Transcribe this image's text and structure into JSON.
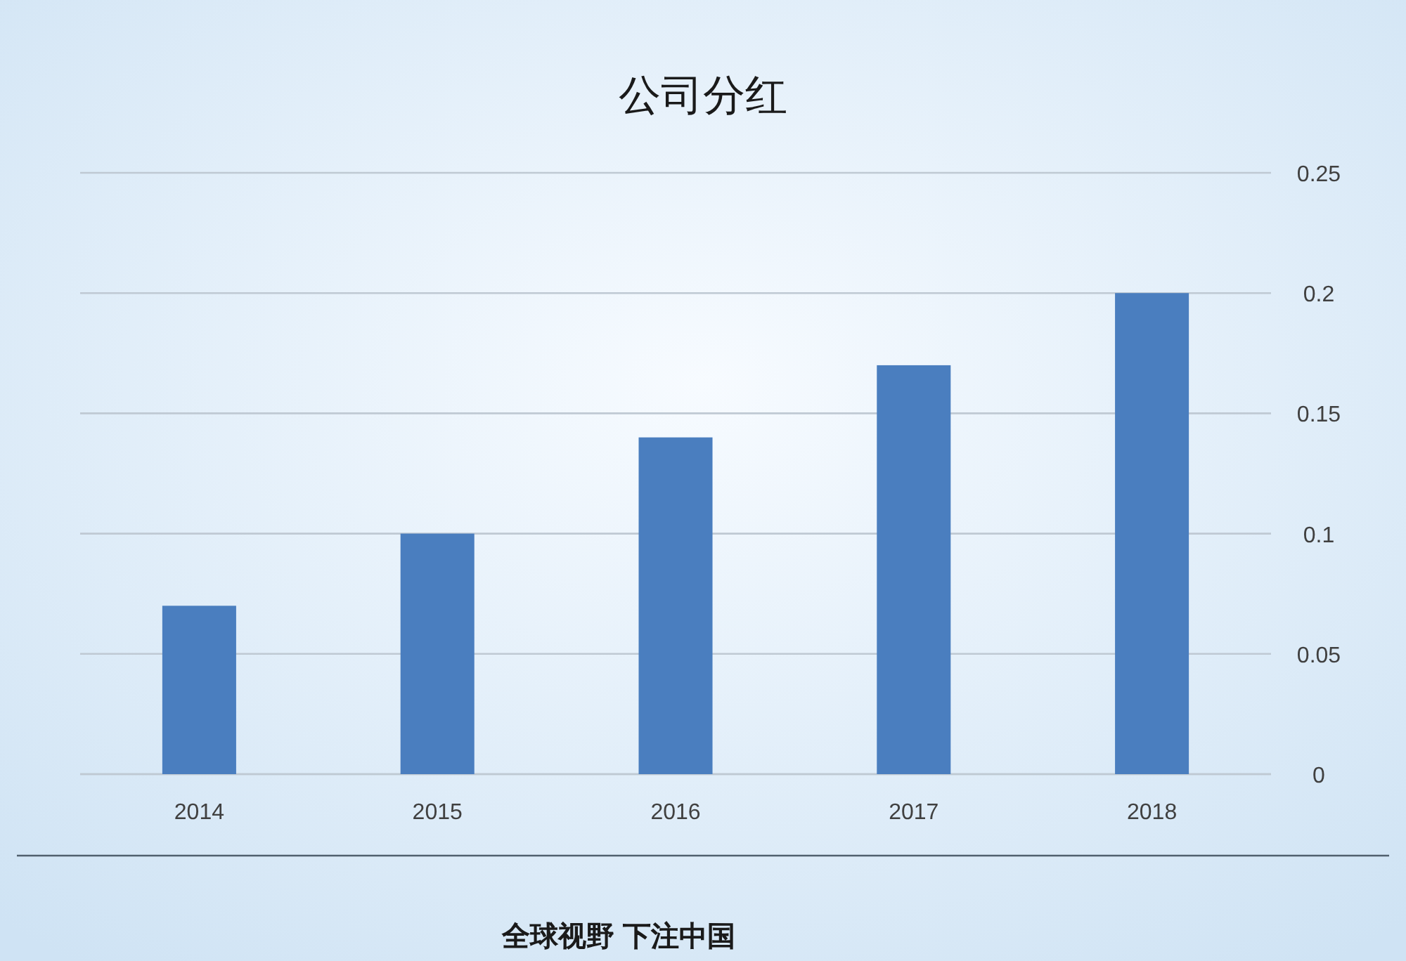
{
  "chart_data": {
    "type": "bar",
    "title": "公司分红",
    "categories": [
      "2014",
      "2015",
      "2016",
      "2017",
      "2018"
    ],
    "values": [
      0.07,
      0.1,
      0.14,
      0.17,
      0.2
    ],
    "color": "#4a7ebf",
    "ylim": [
      0,
      0.25
    ],
    "yticks": [
      0,
      0.05,
      0.1,
      0.15,
      0.2,
      0.25
    ],
    "grid": "y",
    "annotations": [
      "全球视野 下注中国"
    ]
  }
}
